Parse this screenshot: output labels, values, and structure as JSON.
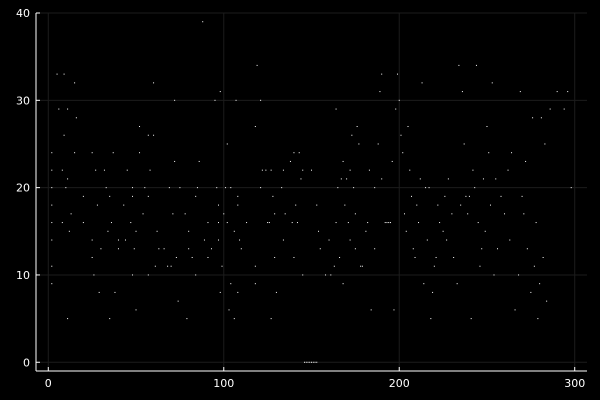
{
  "colors": {
    "background": "#000000",
    "axis": "#ffffff",
    "grid": "#1c1c1c",
    "marker": "#ffffff"
  },
  "chart_data": {
    "type": "scatter",
    "title": "",
    "xlabel": "",
    "ylabel": "",
    "xlim": [
      -7,
      307
    ],
    "ylim": [
      -1,
      40
    ],
    "xticks": [
      0,
      100,
      200,
      300
    ],
    "yticks": [
      0,
      10,
      20,
      30,
      40
    ],
    "grid": true,
    "legend": "none",
    "series": [
      {
        "points": [
          [
            2,
            9
          ],
          [
            2,
            11
          ],
          [
            2,
            14
          ],
          [
            2,
            16
          ],
          [
            2,
            18
          ],
          [
            2,
            20
          ],
          [
            2,
            22
          ],
          [
            2,
            24
          ],
          [
            5,
            33
          ],
          [
            6,
            29
          ],
          [
            8,
            16
          ],
          [
            8,
            22
          ],
          [
            9,
            33
          ],
          [
            9,
            26
          ],
          [
            10,
            20
          ],
          [
            11,
            5
          ],
          [
            11,
            29
          ],
          [
            11,
            21
          ],
          [
            12,
            15
          ],
          [
            13,
            17
          ],
          [
            15,
            32
          ],
          [
            15,
            24
          ],
          [
            16,
            28
          ],
          [
            20,
            19
          ],
          [
            20,
            16
          ],
          [
            25,
            24
          ],
          [
            25,
            14
          ],
          [
            25,
            12
          ],
          [
            26,
            10
          ],
          [
            27,
            22
          ],
          [
            28,
            18
          ],
          [
            29,
            8
          ],
          [
            30,
            13
          ],
          [
            32,
            22
          ],
          [
            33,
            20
          ],
          [
            34,
            15
          ],
          [
            35,
            5
          ],
          [
            35,
            19
          ],
          [
            36,
            16
          ],
          [
            37,
            24
          ],
          [
            38,
            8
          ],
          [
            40,
            13
          ],
          [
            40,
            14
          ],
          [
            43,
            18
          ],
          [
            44,
            14
          ],
          [
            45,
            22
          ],
          [
            47,
            16
          ],
          [
            48,
            10
          ],
          [
            48,
            20
          ],
          [
            48,
            19
          ],
          [
            49,
            13
          ],
          [
            50,
            15
          ],
          [
            50,
            6
          ],
          [
            52,
            27
          ],
          [
            52,
            24
          ],
          [
            54,
            17
          ],
          [
            55,
            20
          ],
          [
            57,
            26
          ],
          [
            57,
            19
          ],
          [
            57,
            10
          ],
          [
            58,
            22
          ],
          [
            60,
            32
          ],
          [
            60,
            26
          ],
          [
            61,
            11
          ],
          [
            62,
            15
          ],
          [
            63,
            13
          ],
          [
            66,
            13
          ],
          [
            68,
            11
          ],
          [
            69,
            20
          ],
          [
            70,
            11
          ],
          [
            71,
            17
          ],
          [
            72,
            30
          ],
          [
            72,
            23
          ],
          [
            73,
            12
          ],
          [
            74,
            7
          ],
          [
            75,
            20
          ],
          [
            78,
            17
          ],
          [
            79,
            5
          ],
          [
            80,
            13
          ],
          [
            80,
            15
          ],
          [
            82,
            12
          ],
          [
            84,
            19
          ],
          [
            84,
            10
          ],
          [
            85,
            20
          ],
          [
            86,
            23
          ],
          [
            88,
            39
          ],
          [
            89,
            14
          ],
          [
            91,
            16
          ],
          [
            91,
            12
          ],
          [
            93,
            13
          ],
          [
            95,
            30
          ],
          [
            96,
            20
          ],
          [
            97,
            18
          ],
          [
            97,
            16
          ],
          [
            97,
            14
          ],
          [
            98,
            8
          ],
          [
            98,
            31
          ],
          [
            99,
            11
          ],
          [
            100,
            17
          ],
          [
            101,
            20
          ],
          [
            102,
            16
          ],
          [
            102,
            25
          ],
          [
            103,
            6
          ],
          [
            104,
            20
          ],
          [
            104,
            9
          ],
          [
            106,
            15
          ],
          [
            106,
            5
          ],
          [
            107,
            30
          ],
          [
            108,
            19
          ],
          [
            108,
            18
          ],
          [
            108,
            8
          ],
          [
            109,
            14
          ],
          [
            110,
            13
          ],
          [
            113,
            16
          ],
          [
            118,
            27
          ],
          [
            118,
            11
          ],
          [
            118,
            9
          ],
          [
            119,
            34
          ],
          [
            121,
            30
          ],
          [
            121,
            20
          ],
          [
            122,
            22
          ],
          [
            124,
            22
          ],
          [
            125,
            16
          ],
          [
            126,
            16
          ],
          [
            127,
            5
          ],
          [
            127,
            22
          ],
          [
            128,
            19
          ],
          [
            129,
            17
          ],
          [
            129,
            12
          ],
          [
            130,
            8
          ],
          [
            133,
            20
          ],
          [
            134,
            22
          ],
          [
            134,
            14
          ],
          [
            135,
            17
          ],
          [
            138,
            23
          ],
          [
            139,
            16
          ],
          [
            140,
            24
          ],
          [
            140,
            12
          ],
          [
            141,
            18
          ],
          [
            142,
            16
          ],
          [
            143,
            24
          ],
          [
            144,
            21
          ],
          [
            145,
            10
          ],
          [
            145,
            22
          ],
          [
            146,
            0
          ],
          [
            147,
            0
          ],
          [
            148,
            0
          ],
          [
            149,
            0
          ],
          [
            150,
            0
          ],
          [
            150,
            22
          ],
          [
            151,
            0
          ],
          [
            152,
            0
          ],
          [
            153,
            0
          ],
          [
            153,
            18
          ],
          [
            154,
            15
          ],
          [
            155,
            13
          ],
          [
            158,
            10
          ],
          [
            160,
            14
          ],
          [
            161,
            10
          ],
          [
            163,
            11
          ],
          [
            164,
            29
          ],
          [
            164,
            16
          ],
          [
            165,
            20
          ],
          [
            166,
            12
          ],
          [
            167,
            21
          ],
          [
            168,
            9
          ],
          [
            168,
            23
          ],
          [
            169,
            18
          ],
          [
            170,
            21
          ],
          [
            171,
            16
          ],
          [
            172,
            22
          ],
          [
            172,
            14
          ],
          [
            173,
            26
          ],
          [
            174,
            20
          ],
          [
            175,
            17
          ],
          [
            175,
            13
          ],
          [
            176,
            27
          ],
          [
            177,
            25
          ],
          [
            178,
            11
          ],
          [
            179,
            11
          ],
          [
            181,
            15
          ],
          [
            182,
            16
          ],
          [
            183,
            22
          ],
          [
            184,
            6
          ],
          [
            186,
            20
          ],
          [
            186,
            13
          ],
          [
            188,
            25
          ],
          [
            189,
            31
          ],
          [
            190,
            33
          ],
          [
            190,
            21
          ],
          [
            192,
            16
          ],
          [
            193,
            16
          ],
          [
            194,
            16
          ],
          [
            195,
            16
          ],
          [
            196,
            23
          ],
          [
            197,
            6
          ],
          [
            198,
            29
          ],
          [
            199,
            33
          ],
          [
            200,
            30
          ],
          [
            201,
            26
          ],
          [
            202,
            24
          ],
          [
            203,
            17
          ],
          [
            204,
            15
          ],
          [
            205,
            27
          ],
          [
            206,
            22
          ],
          [
            207,
            19
          ],
          [
            208,
            13
          ],
          [
            209,
            12
          ],
          [
            210,
            18
          ],
          [
            211,
            16
          ],
          [
            212,
            21
          ],
          [
            213,
            32
          ],
          [
            214,
            9
          ],
          [
            215,
            20
          ],
          [
            216,
            14
          ],
          [
            217,
            20
          ],
          [
            218,
            5
          ],
          [
            219,
            8
          ],
          [
            220,
            11
          ],
          [
            221,
            12
          ],
          [
            222,
            18
          ],
          [
            223,
            16
          ],
          [
            225,
            15
          ],
          [
            226,
            19
          ],
          [
            227,
            14
          ],
          [
            228,
            21
          ],
          [
            230,
            17
          ],
          [
            231,
            12
          ],
          [
            233,
            9
          ],
          [
            234,
            34
          ],
          [
            235,
            18
          ],
          [
            236,
            31
          ],
          [
            237,
            25
          ],
          [
            238,
            19
          ],
          [
            239,
            17
          ],
          [
            240,
            19
          ],
          [
            241,
            5
          ],
          [
            242,
            22
          ],
          [
            243,
            20
          ],
          [
            244,
            34
          ],
          [
            245,
            16
          ],
          [
            246,
            11
          ],
          [
            247,
            13
          ],
          [
            248,
            21
          ],
          [
            249,
            15
          ],
          [
            250,
            27
          ],
          [
            251,
            24
          ],
          [
            252,
            18
          ],
          [
            253,
            32
          ],
          [
            254,
            10
          ],
          [
            255,
            21
          ],
          [
            256,
            13
          ],
          [
            258,
            19
          ],
          [
            260,
            17
          ],
          [
            262,
            22
          ],
          [
            263,
            14
          ],
          [
            264,
            24
          ],
          [
            266,
            6
          ],
          [
            268,
            10
          ],
          [
            269,
            31
          ],
          [
            270,
            19
          ],
          [
            271,
            17
          ],
          [
            272,
            23
          ],
          [
            273,
            13
          ],
          [
            275,
            8
          ],
          [
            276,
            28
          ],
          [
            277,
            11
          ],
          [
            278,
            16
          ],
          [
            279,
            5
          ],
          [
            280,
            9
          ],
          [
            281,
            28
          ],
          [
            282,
            12
          ],
          [
            283,
            25
          ],
          [
            284,
            7
          ],
          [
            286,
            29
          ],
          [
            290,
            31
          ],
          [
            294,
            29
          ],
          [
            296,
            31
          ],
          [
            298,
            20
          ]
        ]
      }
    ]
  }
}
